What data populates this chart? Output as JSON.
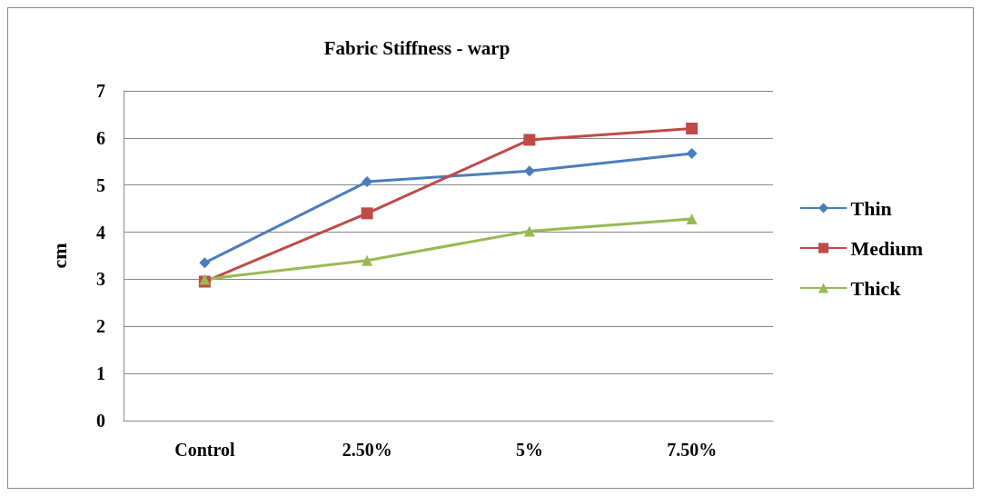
{
  "chart_data": {
    "type": "line",
    "title": "Fabric Stiffness - warp",
    "ylabel": "cm",
    "categories": [
      "Control",
      "2.50%",
      "5%",
      "7.50%"
    ],
    "series": [
      {
        "name": "Thin",
        "color": "#4a7ebb",
        "values": [
          3.35,
          5.07,
          5.3,
          5.67
        ],
        "marker": "diamond"
      },
      {
        "name": "Medium",
        "color": "#be4b48",
        "values": [
          2.95,
          4.4,
          5.96,
          6.2
        ],
        "marker": "square"
      },
      {
        "name": "Thick",
        "color": "#98b954",
        "values": [
          3.0,
          3.4,
          4.02,
          4.28
        ],
        "marker": "triangle"
      }
    ],
    "ylim": [
      0,
      7
    ],
    "yticks": [
      0,
      1,
      2,
      3,
      4,
      5,
      6,
      7
    ],
    "grid": "y",
    "legend": "right",
    "line_style": "solid"
  }
}
